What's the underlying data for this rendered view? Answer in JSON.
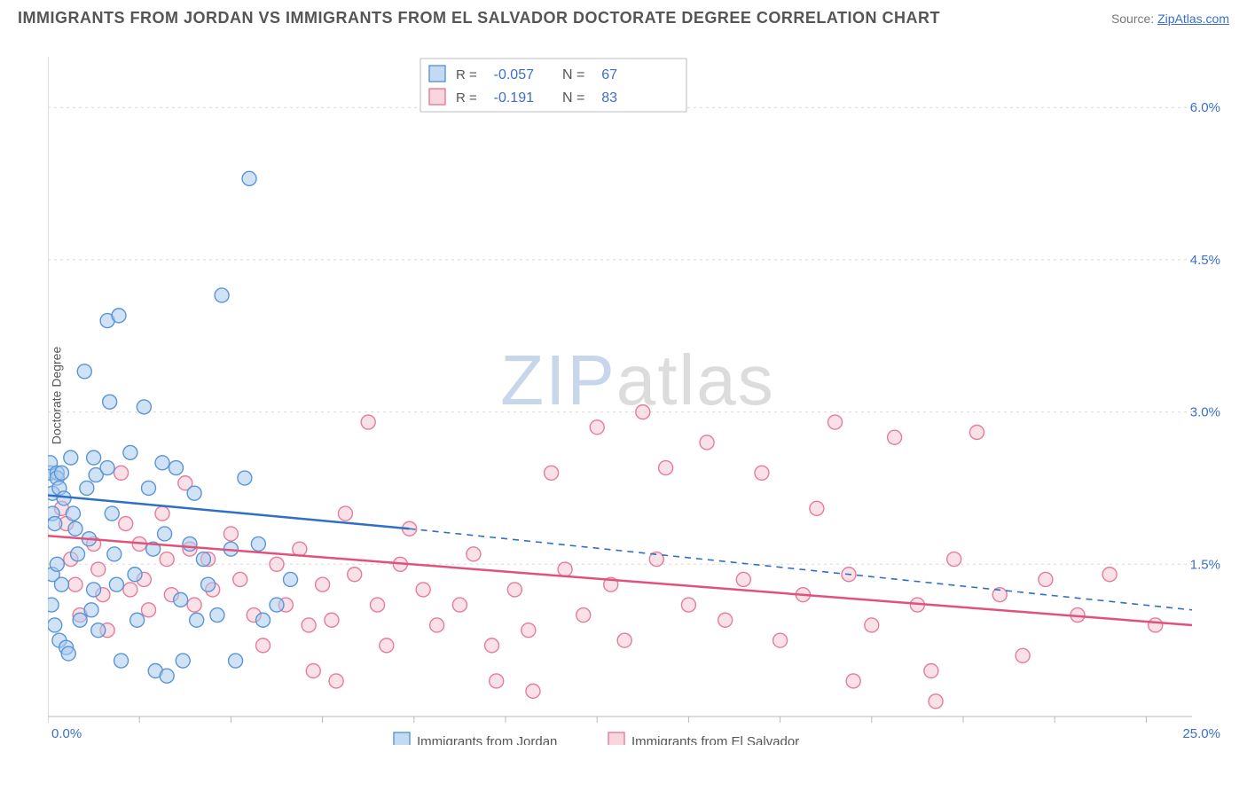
{
  "header": {
    "title": "IMMIGRANTS FROM JORDAN VS IMMIGRANTS FROM EL SALVADOR DOCTORATE DEGREE CORRELATION CHART",
    "source_prefix": "Source: ",
    "source_link": "ZipAtlas.com"
  },
  "watermark": {
    "zip": "ZIP",
    "atlas": "atlas"
  },
  "chart": {
    "type": "scatter",
    "ylabel": "Doctorate Degree",
    "xlim": [
      0,
      25
    ],
    "ylim": [
      0,
      6.5
    ],
    "x_ticks": [
      0,
      2,
      4,
      6,
      8,
      10,
      12,
      14,
      16,
      18,
      20,
      22,
      24
    ],
    "x_corner_labels": {
      "min": "0.0%",
      "max": "25.0%"
    },
    "y_gridlines": [
      1.5,
      3.0,
      4.5,
      6.0
    ],
    "y_labels": [
      "1.5%",
      "3.0%",
      "4.5%",
      "6.0%"
    ],
    "background_color": "#ffffff",
    "grid_color": "#d8d8d8",
    "border_color": "#b9b9b9",
    "axis_label_color": "#3b6fc9",
    "marker_radius": 8,
    "marker_stroke_width": 1.4,
    "line_width": 2.5,
    "series": [
      {
        "name": "Immigrants from Jordan",
        "fill": "#a9cbee",
        "stroke": "#5a95d6",
        "line_color": "#2f6fc4",
        "fill_opacity": 0.55,
        "R": "-0.057",
        "N": "67",
        "trend_solid": {
          "x1": 0,
          "y1": 2.18,
          "x2": 7.9,
          "y2": 1.85
        },
        "trend_dash": {
          "x1": 7.9,
          "y1": 1.85,
          "x2": 25,
          "y2": 1.05
        },
        "points": [
          [
            0.05,
            2.4
          ],
          [
            0.1,
            2.2
          ],
          [
            0.1,
            2.0
          ],
          [
            0.15,
            1.9
          ],
          [
            0.1,
            1.4
          ],
          [
            0.08,
            1.1
          ],
          [
            0.05,
            2.5
          ],
          [
            0.2,
            2.4
          ],
          [
            0.2,
            2.35
          ],
          [
            0.25,
            2.25
          ],
          [
            0.3,
            2.4
          ],
          [
            0.35,
            2.15
          ],
          [
            0.2,
            1.5
          ],
          [
            0.3,
            1.3
          ],
          [
            0.15,
            0.9
          ],
          [
            0.25,
            0.75
          ],
          [
            0.4,
            0.68
          ],
          [
            0.45,
            0.62
          ],
          [
            0.5,
            2.55
          ],
          [
            0.55,
            2.0
          ],
          [
            0.6,
            1.85
          ],
          [
            0.65,
            1.6
          ],
          [
            0.7,
            0.95
          ],
          [
            0.8,
            3.4
          ],
          [
            0.85,
            2.25
          ],
          [
            0.9,
            1.75
          ],
          [
            0.95,
            1.05
          ],
          [
            1.0,
            2.55
          ],
          [
            1.05,
            2.38
          ],
          [
            1.0,
            1.25
          ],
          [
            1.1,
            0.85
          ],
          [
            1.3,
            3.9
          ],
          [
            1.35,
            3.1
          ],
          [
            1.3,
            2.45
          ],
          [
            1.4,
            2.0
          ],
          [
            1.45,
            1.6
          ],
          [
            1.5,
            1.3
          ],
          [
            1.6,
            0.55
          ],
          [
            1.55,
            3.95
          ],
          [
            1.8,
            2.6
          ],
          [
            1.9,
            1.4
          ],
          [
            1.95,
            0.95
          ],
          [
            2.1,
            3.05
          ],
          [
            2.2,
            2.25
          ],
          [
            2.3,
            1.65
          ],
          [
            2.35,
            0.45
          ],
          [
            2.5,
            2.5
          ],
          [
            2.55,
            1.8
          ],
          [
            2.6,
            0.4
          ],
          [
            2.8,
            2.45
          ],
          [
            2.9,
            1.15
          ],
          [
            2.95,
            0.55
          ],
          [
            3.1,
            1.7
          ],
          [
            3.2,
            2.2
          ],
          [
            3.25,
            0.95
          ],
          [
            3.4,
            1.55
          ],
          [
            3.5,
            1.3
          ],
          [
            3.7,
            1.0
          ],
          [
            3.8,
            4.15
          ],
          [
            4.0,
            1.65
          ],
          [
            4.1,
            0.55
          ],
          [
            4.3,
            2.35
          ],
          [
            4.4,
            5.3
          ],
          [
            4.6,
            1.7
          ],
          [
            4.7,
            0.95
          ],
          [
            5.0,
            1.1
          ],
          [
            5.3,
            1.35
          ]
        ]
      },
      {
        "name": "Immigrants from El Salvador",
        "fill": "#f6c3cf",
        "stroke": "#e67c9a",
        "line_color": "#e0527c",
        "fill_opacity": 0.5,
        "R": "-0.191",
        "N": "83",
        "trend_solid": {
          "x1": 0,
          "y1": 1.78,
          "x2": 25,
          "y2": 0.9
        },
        "trend_dash": null,
        "points": [
          [
            0.3,
            2.05
          ],
          [
            0.4,
            1.9
          ],
          [
            0.5,
            1.55
          ],
          [
            0.6,
            1.3
          ],
          [
            0.7,
            1.0
          ],
          [
            1.0,
            1.7
          ],
          [
            1.1,
            1.45
          ],
          [
            1.2,
            1.2
          ],
          [
            1.3,
            0.85
          ],
          [
            1.6,
            2.4
          ],
          [
            1.7,
            1.9
          ],
          [
            1.8,
            1.25
          ],
          [
            2.0,
            1.7
          ],
          [
            2.1,
            1.35
          ],
          [
            2.2,
            1.05
          ],
          [
            2.5,
            2.0
          ],
          [
            2.6,
            1.55
          ],
          [
            2.7,
            1.2
          ],
          [
            3.0,
            2.3
          ],
          [
            3.1,
            1.65
          ],
          [
            3.2,
            1.1
          ],
          [
            3.5,
            1.55
          ],
          [
            3.6,
            1.25
          ],
          [
            4.0,
            1.8
          ],
          [
            4.2,
            1.35
          ],
          [
            4.5,
            1.0
          ],
          [
            4.7,
            0.7
          ],
          [
            5.0,
            1.5
          ],
          [
            5.2,
            1.1
          ],
          [
            5.5,
            1.65
          ],
          [
            5.7,
            0.9
          ],
          [
            5.8,
            0.45
          ],
          [
            6.0,
            1.3
          ],
          [
            6.2,
            0.95
          ],
          [
            6.3,
            0.35
          ],
          [
            6.5,
            2.0
          ],
          [
            6.7,
            1.4
          ],
          [
            7.0,
            2.9
          ],
          [
            7.2,
            1.1
          ],
          [
            7.4,
            0.7
          ],
          [
            7.7,
            1.5
          ],
          [
            7.9,
            1.85
          ],
          [
            8.2,
            1.25
          ],
          [
            8.5,
            0.9
          ],
          [
            9.0,
            1.1
          ],
          [
            9.3,
            1.6
          ],
          [
            9.7,
            0.7
          ],
          [
            9.8,
            0.35
          ],
          [
            10.2,
            1.25
          ],
          [
            10.5,
            0.85
          ],
          [
            10.6,
            0.25
          ],
          [
            11.0,
            2.4
          ],
          [
            11.3,
            1.45
          ],
          [
            11.7,
            1.0
          ],
          [
            12.0,
            2.85
          ],
          [
            12.3,
            1.3
          ],
          [
            12.6,
            0.75
          ],
          [
            13.0,
            3.0
          ],
          [
            13.3,
            1.55
          ],
          [
            13.5,
            2.45
          ],
          [
            14.0,
            1.1
          ],
          [
            14.4,
            2.7
          ],
          [
            14.8,
            0.95
          ],
          [
            15.2,
            1.35
          ],
          [
            15.6,
            2.4
          ],
          [
            16.0,
            0.75
          ],
          [
            16.5,
            1.2
          ],
          [
            16.8,
            2.05
          ],
          [
            17.2,
            2.9
          ],
          [
            17.5,
            1.4
          ],
          [
            17.6,
            0.35
          ],
          [
            18.0,
            0.9
          ],
          [
            18.5,
            2.75
          ],
          [
            19.0,
            1.1
          ],
          [
            19.3,
            0.45
          ],
          [
            19.4,
            0.15
          ],
          [
            19.8,
            1.55
          ],
          [
            20.3,
            2.8
          ],
          [
            20.8,
            1.2
          ],
          [
            21.3,
            0.6
          ],
          [
            21.8,
            1.35
          ],
          [
            22.5,
            1.0
          ],
          [
            23.2,
            1.4
          ],
          [
            24.2,
            0.9
          ]
        ]
      }
    ],
    "stats_legend": {
      "box_border": "#bcbcbc",
      "R_label": "R =",
      "N_label": "N ="
    },
    "bottom_legend_labels": [
      "Immigrants from Jordan",
      "Immigrants from El Salvador"
    ]
  }
}
